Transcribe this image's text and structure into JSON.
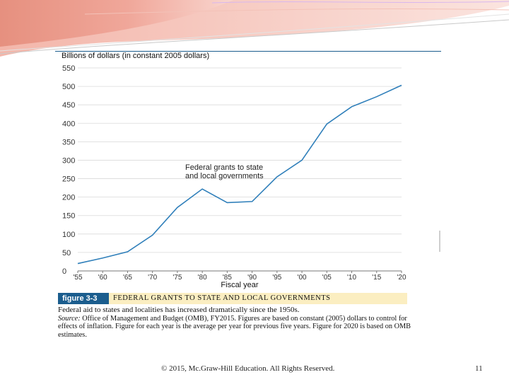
{
  "slide": {
    "copyright": "© 2015, Mc.Graw-Hill Education. All Rights Reserved.",
    "page_number": "11"
  },
  "figure": {
    "label": "figure 3-3",
    "title": "FEDERAL GRANTS TO STATE AND LOCAL GOVERNMENTS",
    "caption_lead": "Federal aid to states and localities has increased dramatically since the 1950s.",
    "source_label": "Source:",
    "source_text": "Office of Management and Budget (OMB), FY2015. Figures are based on constant (2005) dollars to control for effects of inflation. Figure for each year is the average per year for previous five years. Figure for 2020 is based on OMB estimates."
  },
  "chart_data": {
    "type": "line",
    "ylabel": "Billions of dollars (in constant 2005 dollars)",
    "xlabel": "Fiscal year",
    "ylim": [
      0,
      550
    ],
    "yticks": [
      "0",
      "50",
      "100",
      "150",
      "200",
      "250",
      "300",
      "350",
      "400",
      "450",
      "500",
      "550"
    ],
    "categories": [
      "'55",
      "'60",
      "'65",
      "'70",
      "'75",
      "'80",
      "'85",
      "'90",
      "'95",
      "'00",
      "'05",
      "'10",
      "'15",
      "'20"
    ],
    "series": [
      {
        "values": [
          20,
          35,
          52,
          97,
          172,
          222,
          185,
          188,
          255,
          300,
          398,
          445,
          472,
          503
        ]
      }
    ],
    "annotation": [
      "Federal grants to state",
      "and local governments"
    ],
    "grid": true,
    "line_color": "#2f7fba"
  }
}
